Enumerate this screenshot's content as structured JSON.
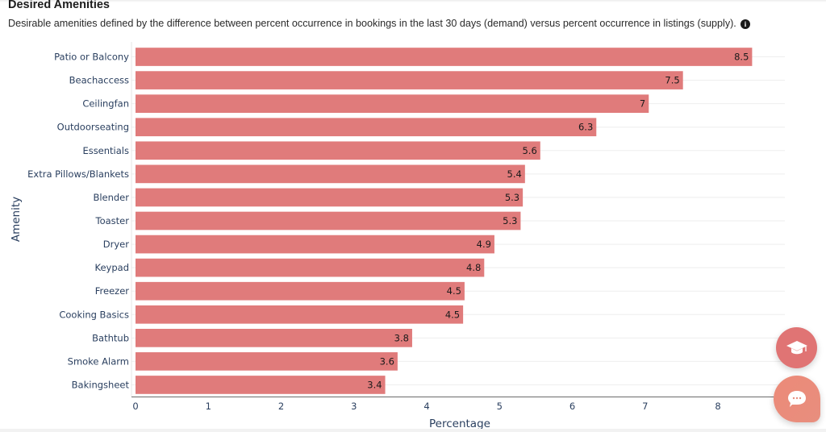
{
  "header": {
    "title": "Desired Amenities",
    "subtitle": "Desirable amenities defined by the difference between percent occurrence in bookings in the last 30 days (demand) versus percent occurrence in listings (supply).",
    "info_icon": "info-icon",
    "info_glyph": "i"
  },
  "fabs": {
    "learn_icon": "graduation-cap-icon",
    "chat_icon": "chat-bubble-icon"
  },
  "colors": {
    "bar": "#e07b7b",
    "axis_text": "#2a3f5f",
    "gridline": "#eeeeee",
    "fab_learn": "#e07474",
    "fab_chat": "#ea8a7a"
  },
  "chart_data": {
    "type": "bar",
    "orientation": "horizontal",
    "title": "Desired Amenities",
    "xlabel": "Percentage",
    "ylabel": "Amenity",
    "xlim": [
      0,
      8.6
    ],
    "xticks": [
      0,
      1,
      2,
      3,
      4,
      5,
      6,
      7,
      8
    ],
    "grid": "horizontal category lines",
    "categories": [
      "Patio or Balcony",
      "Beachaccess",
      "Ceilingfan",
      "Outdoorseating",
      "Essentials",
      "Extra Pillows/Blankets",
      "Blender",
      "Toaster",
      "Dryer",
      "Keypad",
      "Freezer",
      "Cooking Basics",
      "Bathtub",
      "Smoke Alarm",
      "Bakingsheet"
    ],
    "values": [
      8.47,
      7.52,
      7.05,
      6.33,
      5.56,
      5.35,
      5.32,
      5.29,
      4.93,
      4.79,
      4.52,
      4.5,
      3.8,
      3.6,
      3.43
    ],
    "data_labels": [
      "8.5",
      "7.5",
      "7",
      "6.3",
      "5.6",
      "5.4",
      "5.3",
      "5.3",
      "4.9",
      "4.8",
      "4.5",
      "4.5",
      "3.8",
      "3.6",
      "3.4"
    ]
  }
}
